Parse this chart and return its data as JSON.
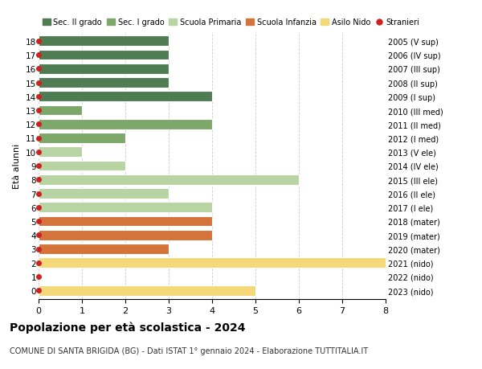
{
  "ages": [
    18,
    17,
    16,
    15,
    14,
    13,
    12,
    11,
    10,
    9,
    8,
    7,
    6,
    5,
    4,
    3,
    2,
    1,
    0
  ],
  "years": [
    "2005 (V sup)",
    "2006 (IV sup)",
    "2007 (III sup)",
    "2008 (II sup)",
    "2009 (I sup)",
    "2010 (III med)",
    "2011 (II med)",
    "2012 (I med)",
    "2013 (V ele)",
    "2014 (IV ele)",
    "2015 (III ele)",
    "2016 (II ele)",
    "2017 (I ele)",
    "2018 (mater)",
    "2019 (mater)",
    "2020 (mater)",
    "2021 (nido)",
    "2022 (nido)",
    "2023 (nido)"
  ],
  "values": [
    3,
    3,
    3,
    3,
    4,
    1,
    4,
    2,
    1,
    2,
    6,
    3,
    4,
    4,
    4,
    3,
    8,
    0,
    5
  ],
  "colors": [
    "#4f7c52",
    "#4f7c52",
    "#4f7c52",
    "#4f7c52",
    "#4f7c52",
    "#7da86a",
    "#7da86a",
    "#7da86a",
    "#b9d4a3",
    "#b9d4a3",
    "#b9d4a3",
    "#b9d4a3",
    "#b9d4a3",
    "#d4733a",
    "#d4733a",
    "#d4733a",
    "#f5d87a",
    "#f5d87a",
    "#f5d87a"
  ],
  "stranieri": [
    true,
    true,
    true,
    true,
    true,
    true,
    true,
    true,
    true,
    true,
    true,
    true,
    true,
    true,
    true,
    true,
    true,
    true,
    true
  ],
  "legend_labels": [
    "Sec. II grado",
    "Sec. I grado",
    "Scuola Primaria",
    "Scuola Infanzia",
    "Asilo Nido",
    "Stranieri"
  ],
  "legend_colors": [
    "#4f7c52",
    "#7da86a",
    "#b9d4a3",
    "#d4733a",
    "#f5d87a",
    "#cc2222"
  ],
  "title": "Popolazione per età scolastica - 2024",
  "subtitle": "COMUNE DI SANTA BRIGIDA (BG) - Dati ISTAT 1° gennaio 2024 - Elaborazione TUTTITALIA.IT",
  "ylabel_left": "Età alunni",
  "xlim": [
    0,
    8
  ],
  "xticks": [
    0,
    1,
    2,
    3,
    4,
    5,
    6,
    7,
    8
  ],
  "background_color": "#ffffff",
  "grid_color": "#cccccc",
  "bar_height": 0.75,
  "stranieri_color": "#cc2222",
  "stranieri_marker_size": 4
}
